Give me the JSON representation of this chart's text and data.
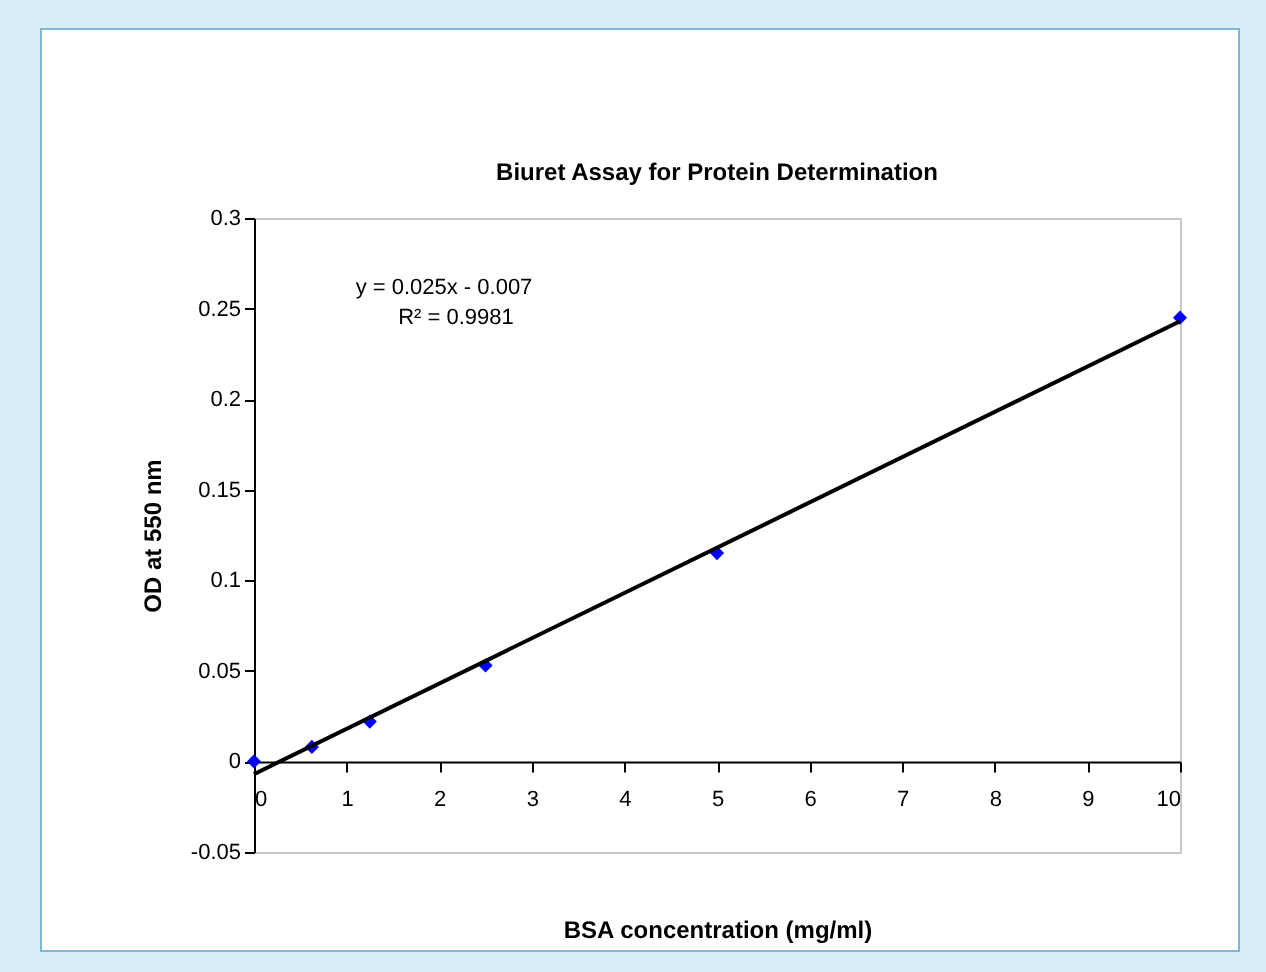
{
  "chart_data": {
    "type": "scatter",
    "title": "Biuret Assay for Protein Determination",
    "xlabel": "BSA concentration (mg/ml)",
    "ylabel": "OD at 550 nm",
    "annotations": [
      "y = 0.025x - 0.007",
      "R² = 0.9981"
    ],
    "x": [
      0,
      0.625,
      1.25,
      2.5,
      5,
      10
    ],
    "series": [
      {
        "color": "#0000ff",
        "marker": "diamond",
        "values": [
          0,
          0.008,
          0.022,
          0.053,
          0.115,
          0.245
        ]
      },
      {
        "type": "line",
        "color": "#000000",
        "marker": "none",
        "x": [
          0,
          10
        ],
        "values": [
          -0.007,
          0.243
        ]
      }
    ],
    "xlim": [
      0,
      10
    ],
    "xticks": [
      0,
      1,
      2,
      3,
      4,
      5,
      6,
      7,
      8,
      9,
      10
    ],
    "ylim": [
      -0.05,
      0.3
    ],
    "yticks": [
      -0.05,
      0,
      0.05,
      0.1,
      0.15,
      0.2,
      0.25,
      0.3
    ],
    "grid": false
  }
}
